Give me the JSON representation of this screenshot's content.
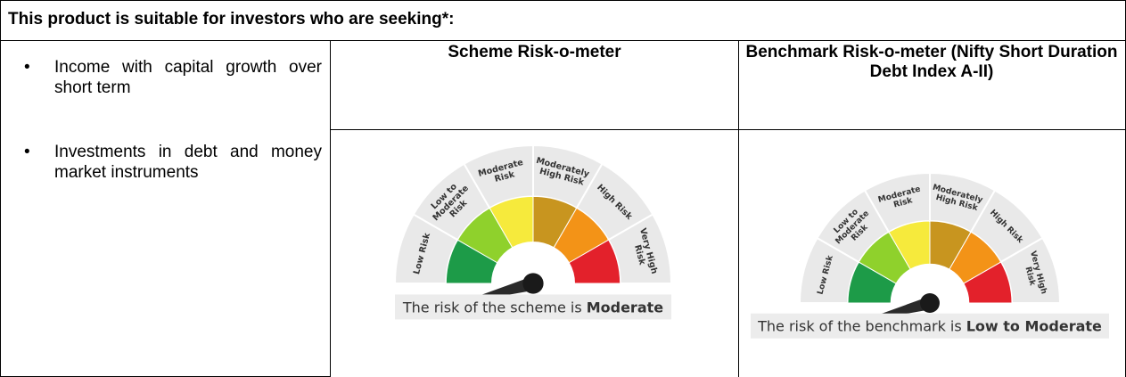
{
  "header": {
    "title": "This product is suitable for investors who are seeking*:"
  },
  "suitability": [
    "Income with capital growth over short term",
    "Investments in debt and money market instruments"
  ],
  "meter_levels": [
    "Low Risk",
    "Low to Moderate Risk",
    "Moderate Risk",
    "Moderately High Risk",
    "High Risk",
    "Very High Risk"
  ],
  "meters": [
    {
      "title": "Scheme Risk-o-meter",
      "caption": "The risk of the scheme is",
      "level": "Moderate"
    },
    {
      "title": "Benchmark Risk-o-meter (Nifty Short Duration Debt Index A-II)",
      "caption": "The risk of the benchmark is",
      "level": "Low to Moderate"
    }
  ]
}
